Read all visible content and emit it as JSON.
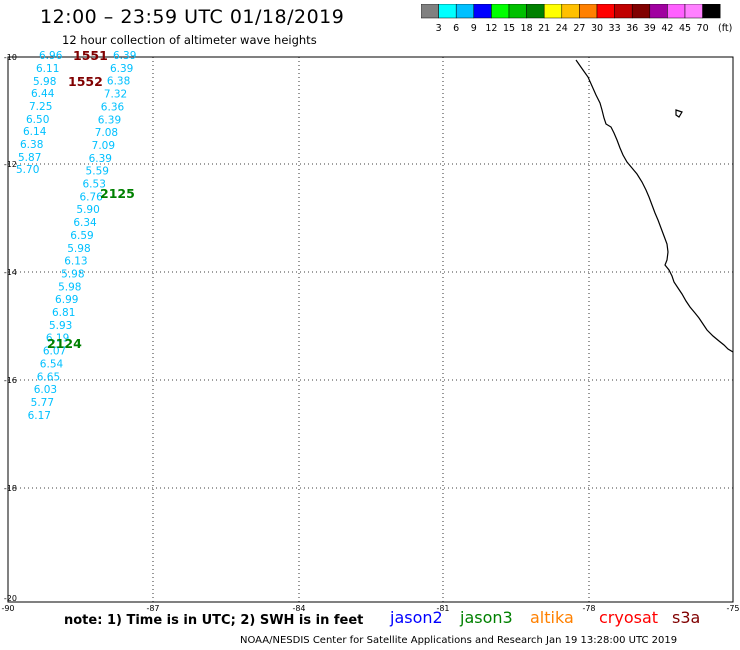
{
  "header": {
    "title": "12:00 – 23:59 UTC 01/18/2019",
    "subtitle": "12 hour collection of altimeter wave heights"
  },
  "color_scale": {
    "unit": "(ft)",
    "labels": [
      "3",
      "6",
      "9",
      "12",
      "15",
      "18",
      "21",
      "24",
      "27",
      "30",
      "33",
      "36",
      "39",
      "42",
      "45",
      "70"
    ],
    "colors": [
      "#808080",
      "#00ffff",
      "#00c0ff",
      "#0000ff",
      "#00ff00",
      "#00c000",
      "#008000",
      "#ffff00",
      "#ffc000",
      "#ff8000",
      "#ff0000",
      "#c00000",
      "#800000",
      "#a000a0",
      "#ff60ff",
      "#ff80ff",
      "#000000"
    ]
  },
  "map": {
    "lat_labels": [
      "-10",
      "-12",
      "-14",
      "-16",
      "-18",
      "-20"
    ],
    "lon_labels": [
      "-90",
      "-87",
      "-84",
      "-81",
      "-78",
      "-75"
    ],
    "track_labels": [
      {
        "text": "1551",
        "color": "#800000"
      },
      {
        "text": "1552",
        "color": "#800000"
      },
      {
        "text": "2125",
        "color": "#008000"
      },
      {
        "text": "2124",
        "color": "#008000"
      }
    ],
    "track_left": {
      "color": "#00c0ff",
      "values": [
        "6.96",
        "6.11",
        "5.98",
        "6.44",
        "7.25",
        "6.50",
        "6.14",
        "6.38",
        "5.87",
        "5.70"
      ]
    },
    "track_right": {
      "color": "#00c0ff",
      "values": [
        "6.39",
        "6.39",
        "6.38",
        "7.32",
        "6.36",
        "6.39",
        "7.08",
        "7.09",
        "6.39",
        "5.59",
        "6.53",
        "6.76",
        "5.90",
        "6.34",
        "6.59",
        "5.98",
        "6.13",
        "5.98",
        "5.98",
        "6.99",
        "6.81",
        "5.93",
        "6.19",
        "6.07",
        "6.54",
        "6.65",
        "6.03",
        "5.77",
        "6.17"
      ]
    }
  },
  "footer": {
    "note": "note:  1) Time is in UTC;  2) SWH is in feet",
    "credit": "NOAA/NESDIS Center for Satellite Applications and Research    Jan 19 13:28:00 UTC 2019"
  },
  "satellites": [
    {
      "name": "jason2",
      "color": "#0000ff"
    },
    {
      "name": "jason3",
      "color": "#008000"
    },
    {
      "name": "altika",
      "color": "#ff8000"
    },
    {
      "name": "cryosat",
      "color": "#ff0000"
    },
    {
      "name": "s3a",
      "color": "#800000"
    }
  ]
}
